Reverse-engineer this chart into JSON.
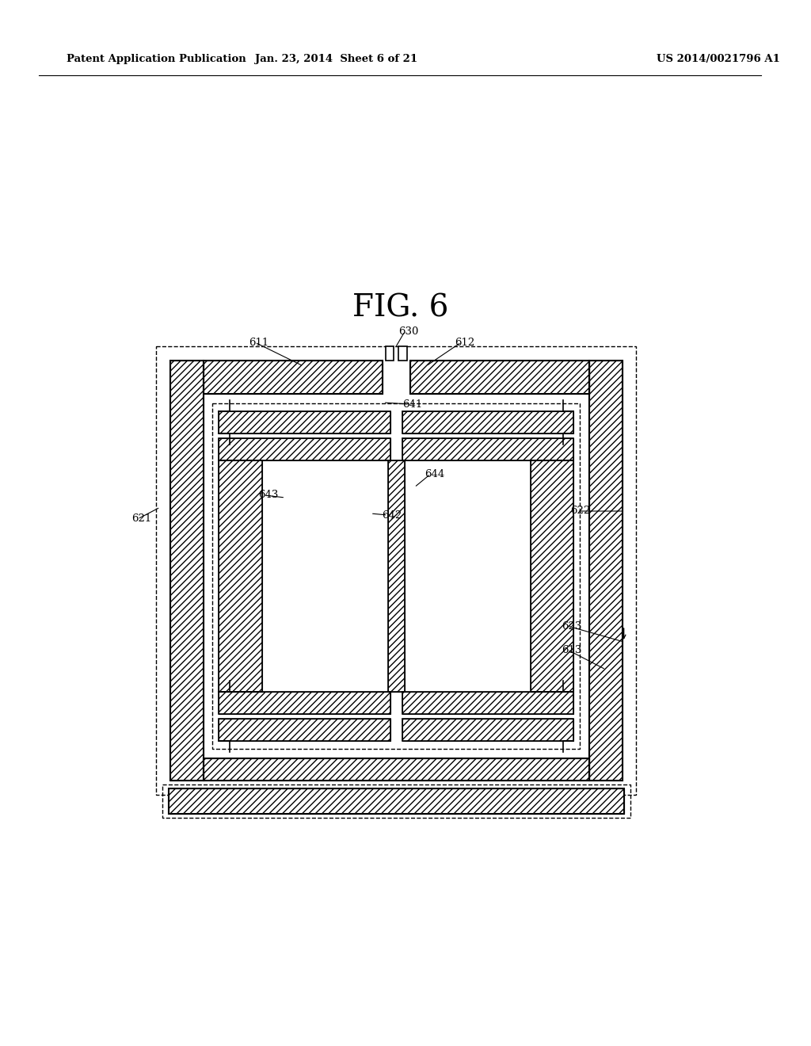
{
  "title": "FIG. 6",
  "header_left": "Patent Application Publication",
  "header_center": "Jan. 23, 2014  Sheet 6 of 21",
  "header_right": "US 2014/0021796 A1",
  "bg_color": "#ffffff",
  "line_color": "#000000"
}
